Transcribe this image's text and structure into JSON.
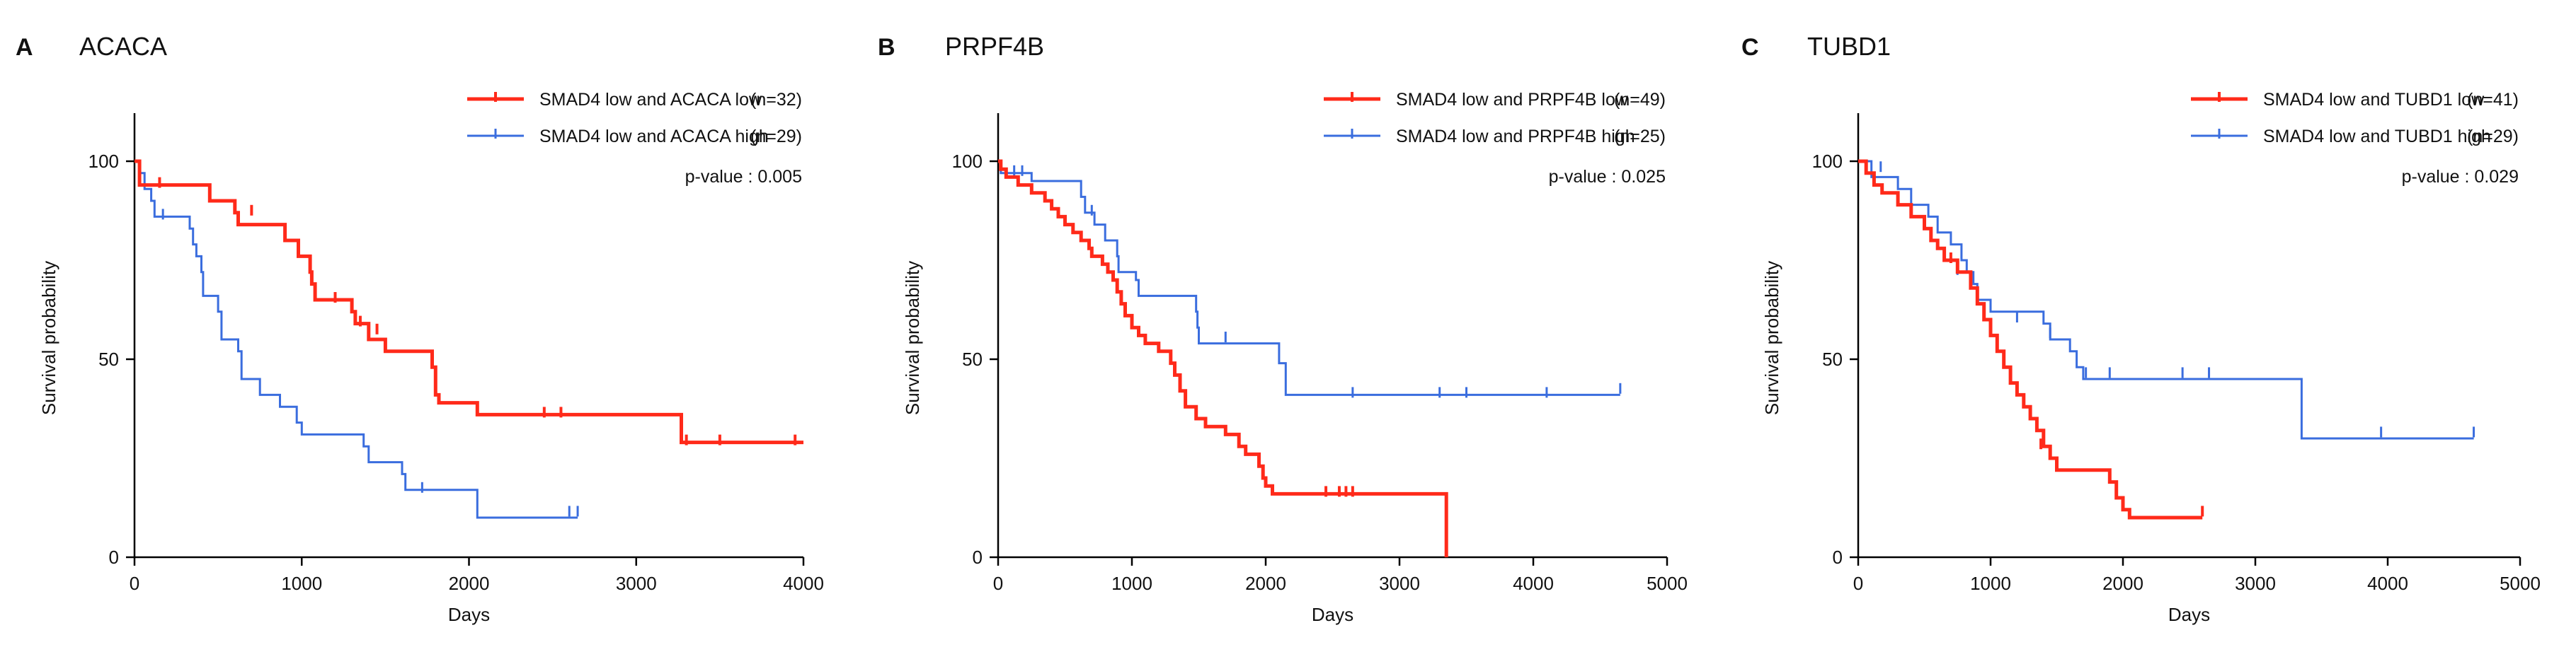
{
  "figure": {
    "background": "#ffffff",
    "colors": {
      "low": "#ff2a1a",
      "high": "#3a6dde",
      "axis": "#000000"
    }
  },
  "chart_data": [
    {
      "type": "line",
      "subtype": "kaplan-meier",
      "panel": "A",
      "title": "ACACA",
      "xlabel": "Days",
      "ylabel": "Survival probability",
      "xlim": [
        0,
        4000
      ],
      "ylim": [
        0,
        100
      ],
      "xticks": [
        "0",
        "1000",
        "2000",
        "3000",
        "4000"
      ],
      "yticks": [
        "0",
        "50",
        "100"
      ],
      "grid": false,
      "legend_position": "top-right",
      "p_value": "p-value : 0.005",
      "series": [
        {
          "name": "SMAD4 low and ACACA low",
          "n": "(n=32)",
          "color": "#ff2a1a",
          "steps": [
            [
              0,
              100
            ],
            [
              30,
              94
            ],
            [
              450,
              90
            ],
            [
              600,
              87
            ],
            [
              620,
              84
            ],
            [
              900,
              80
            ],
            [
              980,
              76
            ],
            [
              1050,
              72
            ],
            [
              1060,
              69
            ],
            [
              1080,
              65
            ],
            [
              1300,
              62
            ],
            [
              1320,
              59
            ],
            [
              1400,
              55
            ],
            [
              1500,
              52
            ],
            [
              1780,
              48
            ],
            [
              1800,
              41
            ],
            [
              1820,
              39
            ],
            [
              2050,
              36
            ],
            [
              3270,
              29
            ],
            [
              4000,
              29
            ]
          ],
          "censored": [
            [
              150,
              94
            ],
            [
              700,
              87
            ],
            [
              1200,
              65
            ],
            [
              1350,
              59
            ],
            [
              1450,
              57
            ],
            [
              2450,
              36
            ],
            [
              2550,
              36
            ],
            [
              3300,
              29
            ],
            [
              3500,
              29
            ],
            [
              3950,
              29
            ]
          ]
        },
        {
          "name": "SMAD4 low and ACACA high",
          "n": "(n=29)",
          "color": "#3a6dde",
          "steps": [
            [
              0,
              100
            ],
            [
              30,
              97
            ],
            [
              60,
              93
            ],
            [
              100,
              90
            ],
            [
              120,
              86
            ],
            [
              330,
              83
            ],
            [
              350,
              79
            ],
            [
              370,
              76
            ],
            [
              400,
              72
            ],
            [
              410,
              66
            ],
            [
              500,
              62
            ],
            [
              520,
              55
            ],
            [
              620,
              52
            ],
            [
              640,
              45
            ],
            [
              750,
              41
            ],
            [
              870,
              38
            ],
            [
              970,
              34
            ],
            [
              1000,
              31
            ],
            [
              1370,
              28
            ],
            [
              1400,
              24
            ],
            [
              1600,
              21
            ],
            [
              1620,
              17
            ],
            [
              2050,
              10
            ],
            [
              2650,
              10
            ]
          ],
          "censored": [
            [
              170,
              86
            ],
            [
              1720,
              17
            ],
            [
              2600,
              11
            ],
            [
              2650,
              11
            ]
          ]
        }
      ]
    },
    {
      "type": "line",
      "subtype": "kaplan-meier",
      "panel": "B",
      "title": "PRPF4B",
      "xlabel": "Days",
      "ylabel": "Survival probability",
      "xlim": [
        0,
        5000
      ],
      "ylim": [
        0,
        100
      ],
      "xticks": [
        "0",
        "1000",
        "2000",
        "3000",
        "4000",
        "5000"
      ],
      "yticks": [
        "0",
        "50",
        "100"
      ],
      "grid": false,
      "legend_position": "top-right",
      "p_value": "p-value : 0.025",
      "series": [
        {
          "name": "SMAD4 low and PRPF4B low",
          "n": "(n=49)",
          "color": "#ff2a1a",
          "steps": [
            [
              0,
              100
            ],
            [
              20,
              98
            ],
            [
              60,
              96
            ],
            [
              150,
              94
            ],
            [
              250,
              92
            ],
            [
              350,
              90
            ],
            [
              400,
              88
            ],
            [
              450,
              86
            ],
            [
              500,
              84
            ],
            [
              560,
              82
            ],
            [
              620,
              80
            ],
            [
              680,
              78
            ],
            [
              700,
              76
            ],
            [
              780,
              74
            ],
            [
              820,
              72
            ],
            [
              860,
              70
            ],
            [
              890,
              67
            ],
            [
              920,
              64
            ],
            [
              950,
              61
            ],
            [
              1000,
              58
            ],
            [
              1050,
              56
            ],
            [
              1100,
              54
            ],
            [
              1200,
              52
            ],
            [
              1290,
              49
            ],
            [
              1320,
              46
            ],
            [
              1360,
              42
            ],
            [
              1400,
              38
            ],
            [
              1480,
              35
            ],
            [
              1550,
              33
            ],
            [
              1700,
              31
            ],
            [
              1800,
              28
            ],
            [
              1850,
              26
            ],
            [
              1950,
              23
            ],
            [
              1980,
              20
            ],
            [
              2000,
              18
            ],
            [
              2050,
              16
            ],
            [
              3350,
              16
            ],
            [
              3350,
              0
            ]
          ],
          "censored": [
            [
              2450,
              16
            ],
            [
              2550,
              16
            ],
            [
              2600,
              16
            ],
            [
              2650,
              16
            ]
          ]
        },
        {
          "name": "SMAD4 low and PRPF4B high",
          "n": "(n=25)",
          "color": "#3a6dde",
          "steps": [
            [
              0,
              100
            ],
            [
              20,
              97
            ],
            [
              250,
              95
            ],
            [
              620,
              91
            ],
            [
              650,
              87
            ],
            [
              720,
              84
            ],
            [
              800,
              80
            ],
            [
              890,
              76
            ],
            [
              900,
              72
            ],
            [
              1030,
              70
            ],
            [
              1050,
              66
            ],
            [
              1480,
              62
            ],
            [
              1490,
              58
            ],
            [
              1500,
              54
            ],
            [
              2100,
              49
            ],
            [
              2150,
              41
            ],
            [
              4650,
              41
            ]
          ],
          "censored": [
            [
              120,
              97
            ],
            [
              180,
              97
            ],
            [
              700,
              87
            ],
            [
              1700,
              55
            ],
            [
              2650,
              41
            ],
            [
              3300,
              41
            ],
            [
              3500,
              41
            ],
            [
              4100,
              41
            ],
            [
              4650,
              42
            ]
          ]
        }
      ]
    },
    {
      "type": "line",
      "subtype": "kaplan-meier",
      "panel": "C",
      "title": "TUBD1",
      "xlabel": "Days",
      "ylabel": "Survival probability",
      "xlim": [
        0,
        5000
      ],
      "ylim": [
        0,
        100
      ],
      "xticks": [
        "0",
        "1000",
        "2000",
        "3000",
        "4000",
        "5000"
      ],
      "yticks": [
        "0",
        "50",
        "100"
      ],
      "grid": false,
      "legend_position": "top-right",
      "p_value": "p-value : 0.029",
      "series": [
        {
          "name": "SMAD4 low and TUBD1 low",
          "n": "(n=41)",
          "color": "#ff2a1a",
          "steps": [
            [
              0,
              100
            ],
            [
              60,
              97
            ],
            [
              120,
              94
            ],
            [
              180,
              92
            ],
            [
              300,
              89
            ],
            [
              400,
              86
            ],
            [
              500,
              83
            ],
            [
              550,
              80
            ],
            [
              600,
              78
            ],
            [
              650,
              75
            ],
            [
              750,
              72
            ],
            [
              850,
              68
            ],
            [
              900,
              64
            ],
            [
              950,
              60
            ],
            [
              1000,
              56
            ],
            [
              1050,
              52
            ],
            [
              1100,
              48
            ],
            [
              1150,
              44
            ],
            [
              1200,
              41
            ],
            [
              1250,
              38
            ],
            [
              1300,
              35
            ],
            [
              1350,
              32
            ],
            [
              1400,
              28
            ],
            [
              1450,
              25
            ],
            [
              1500,
              22
            ],
            [
              1900,
              19
            ],
            [
              1950,
              15
            ],
            [
              2000,
              12
            ],
            [
              2050,
              10
            ],
            [
              2600,
              10
            ]
          ],
          "censored": [
            [
              700,
              75
            ],
            [
              1380,
              28
            ],
            [
              2600,
              11
            ]
          ]
        },
        {
          "name": "SMAD4 low and TUBD1 high",
          "n": "(n=29)",
          "color": "#3a6dde",
          "steps": [
            [
              0,
              100
            ],
            [
              100,
              96
            ],
            [
              300,
              93
            ],
            [
              400,
              89
            ],
            [
              530,
              86
            ],
            [
              600,
              82
            ],
            [
              700,
              79
            ],
            [
              780,
              75
            ],
            [
              820,
              72
            ],
            [
              870,
              69
            ],
            [
              900,
              65
            ],
            [
              1000,
              62
            ],
            [
              1400,
              59
            ],
            [
              1450,
              55
            ],
            [
              1600,
              52
            ],
            [
              1650,
              48
            ],
            [
              1700,
              45
            ],
            [
              3350,
              45
            ],
            [
              3350,
              30
            ],
            [
              4650,
              30
            ]
          ],
          "censored": [
            [
              170,
              98
            ],
            [
              750,
              72
            ],
            [
              1200,
              60
            ],
            [
              1450,
              56
            ],
            [
              1720,
              46
            ],
            [
              1900,
              46
            ],
            [
              2450,
              46
            ],
            [
              2650,
              46
            ],
            [
              3950,
              31
            ],
            [
              4650,
              31
            ]
          ]
        }
      ]
    }
  ]
}
